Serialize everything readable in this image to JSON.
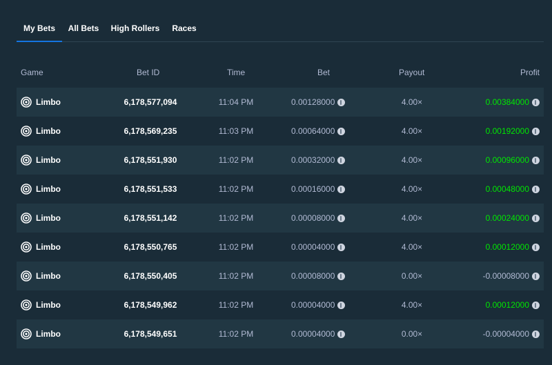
{
  "tabs": [
    {
      "label": "My Bets",
      "active": true
    },
    {
      "label": "All Bets",
      "active": false
    },
    {
      "label": "High Rollers",
      "active": false
    },
    {
      "label": "Races",
      "active": false
    }
  ],
  "columns": {
    "game": "Game",
    "bet_id": "Bet ID",
    "time": "Time",
    "bet": "Bet",
    "payout": "Payout",
    "profit": "Profit"
  },
  "rows": [
    {
      "game": "Limbo",
      "bet_id": "6,178,577,094",
      "time": "11:04 PM",
      "bet": "0.00128000",
      "payout": "4.00×",
      "profit": "0.00384000",
      "positive": true
    },
    {
      "game": "Limbo",
      "bet_id": "6,178,569,235",
      "time": "11:03 PM",
      "bet": "0.00064000",
      "payout": "4.00×",
      "profit": "0.00192000",
      "positive": true
    },
    {
      "game": "Limbo",
      "bet_id": "6,178,551,930",
      "time": "11:02 PM",
      "bet": "0.00032000",
      "payout": "4.00×",
      "profit": "0.00096000",
      "positive": true
    },
    {
      "game": "Limbo",
      "bet_id": "6,178,551,533",
      "time": "11:02 PM",
      "bet": "0.00016000",
      "payout": "4.00×",
      "profit": "0.00048000",
      "positive": true
    },
    {
      "game": "Limbo",
      "bet_id": "6,178,551,142",
      "time": "11:02 PM",
      "bet": "0.00008000",
      "payout": "4.00×",
      "profit": "0.00024000",
      "positive": true
    },
    {
      "game": "Limbo",
      "bet_id": "6,178,550,765",
      "time": "11:02 PM",
      "bet": "0.00004000",
      "payout": "4.00×",
      "profit": "0.00012000",
      "positive": true
    },
    {
      "game": "Limbo",
      "bet_id": "6,178,550,405",
      "time": "11:02 PM",
      "bet": "0.00008000",
      "payout": "0.00×",
      "profit": "-0.00008000",
      "positive": false
    },
    {
      "game": "Limbo",
      "bet_id": "6,178,549,962",
      "time": "11:02 PM",
      "bet": "0.00004000",
      "payout": "4.00×",
      "profit": "0.00012000",
      "positive": true
    },
    {
      "game": "Limbo",
      "bet_id": "6,178,549,651",
      "time": "11:02 PM",
      "bet": "0.00004000",
      "payout": "0.00×",
      "profit": "-0.00004000",
      "positive": false
    }
  ],
  "icons": {
    "game": "target-icon",
    "currency": "litecoin-icon"
  },
  "colors": {
    "background": "#1a2c38",
    "row_alt": "#213743",
    "profit_positive": "#00e701",
    "tab_underline": "#1475e1"
  }
}
